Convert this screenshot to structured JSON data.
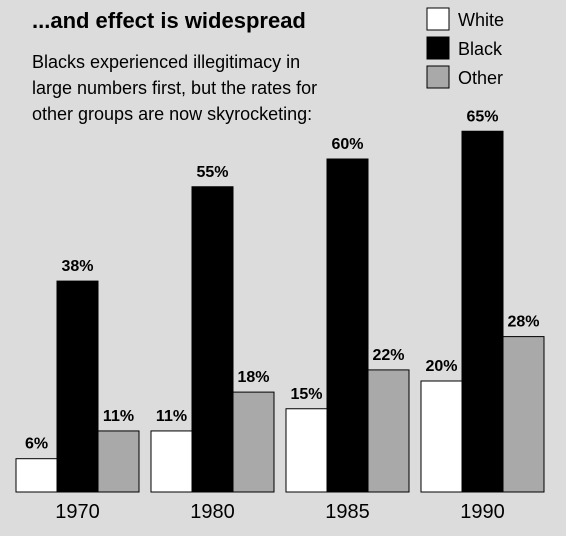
{
  "header": {
    "title": "...and effect is widespread",
    "subtitle_lines": [
      "Blacks experienced illegitimacy in",
      "large numbers first, but the rates for",
      "other groups are now skyrocketing:"
    ]
  },
  "chart_data": {
    "type": "bar",
    "categories": [
      "1970",
      "1980",
      "1985",
      "1990"
    ],
    "series": [
      {
        "name": "White",
        "color": "#ffffff",
        "values": [
          6,
          11,
          15,
          20
        ],
        "labels": [
          "6%",
          "11%",
          "15%",
          "20%"
        ]
      },
      {
        "name": "Black",
        "color": "#000000",
        "values": [
          38,
          55,
          60,
          65
        ],
        "labels": [
          "38%",
          "55%",
          "60%",
          "65%"
        ]
      },
      {
        "name": "Other",
        "color": "#a9a9a9",
        "values": [
          11,
          18,
          22,
          28
        ],
        "labels": [
          "11%",
          "18%",
          "22%",
          "28%"
        ]
      }
    ],
    "ylim": [
      0,
      65
    ],
    "legend_position": "top-right",
    "grid": false
  }
}
